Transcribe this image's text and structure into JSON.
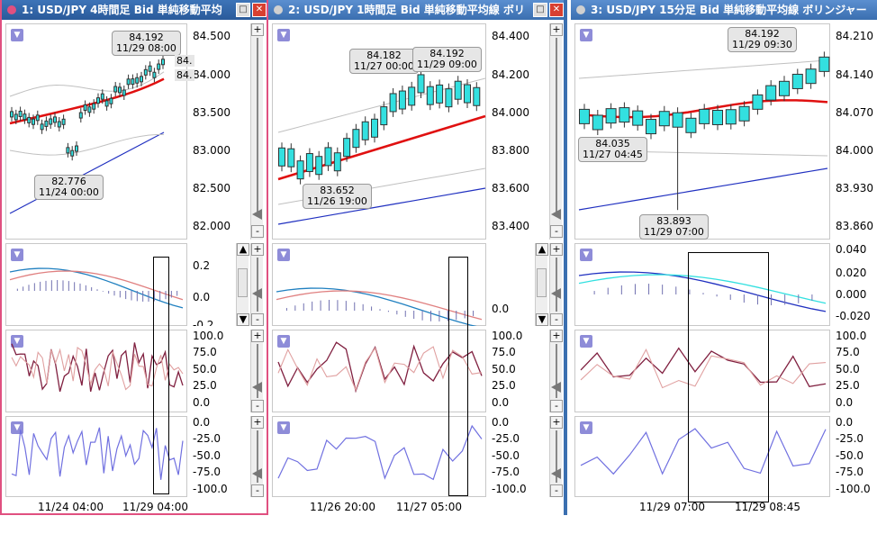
{
  "panes": [
    {
      "title": "1: USD/JPY 4時間足 Bid 単純移動平均",
      "price_axis": [
        "84.500",
        "84.000",
        "83.500",
        "83.000",
        "82.500",
        "82.000"
      ],
      "macd_axis": [
        "0.2",
        "0.0"
      ],
      "macd_axis_clipped": "-0.2",
      "callout_high": {
        "price": "84.192",
        "time": "11/29 08:00"
      },
      "callout_low": {
        "price": "82.776",
        "time": "11/24 00:00"
      },
      "clipped_labels": [
        "84.",
        "84."
      ],
      "x_labels": [
        "11/24 04:00",
        "11/29 04:00"
      ]
    },
    {
      "title": "2: USD/JPY 1時間足 Bid 単純移動平均線 ボリ",
      "price_axis": [
        "84.400",
        "84.200",
        "84.000",
        "83.800",
        "83.600",
        "83.400"
      ],
      "macd_axis": [
        "0.0"
      ],
      "callout_high1": {
        "price": "84.182",
        "time": "11/27 00:00"
      },
      "callout_high2": {
        "price": "84.192",
        "time": "11/29 09:00"
      },
      "callout_low": {
        "price": "83.652",
        "time": "11/26 19:00"
      },
      "x_labels": [
        "11/26 20:00",
        "11/27 05:00"
      ]
    },
    {
      "title": "3: USD/JPY 15分足 Bid 単純移動平均線 ボリンジャー",
      "price_axis": [
        "84.210",
        "84.140",
        "84.070",
        "84.000",
        "83.930",
        "83.860"
      ],
      "macd_axis": [
        "0.040",
        "0.020",
        "0.000",
        "-0.020"
      ],
      "callout_high": {
        "price": "84.192",
        "time": "11/29 09:30"
      },
      "callout_mid": {
        "price": "84.035",
        "time": "11/27 04:45"
      },
      "callout_low": {
        "price": "83.893",
        "time": "11/29 07:00"
      },
      "x_labels": [
        "11/29 07:00",
        "11/29 08:45"
      ]
    }
  ],
  "stoch_axis": [
    "100.0",
    "75.0",
    "50.0",
    "25.0",
    "0.0"
  ],
  "wr_axis": [
    "0.0",
    "-25.0",
    "-50.0",
    "-75.0",
    "-100.0"
  ],
  "buttons": {
    "plus": "+",
    "minus": "-",
    "up": "▲",
    "down": "▼",
    "menu": "▼",
    "max": "□",
    "close": "✕"
  },
  "colors": {
    "bull": "#33e0e0",
    "bear": "#ee44ee",
    "sma": "#e01010",
    "long_ma": "#2030c0",
    "band": "#c0c0c0",
    "macd": "#2080c0",
    "signal": "#e08080",
    "stoch_k": "#802040",
    "stoch_d": "#e0a0a0",
    "wr": "#7070e0",
    "title_pink": "#e05080"
  }
}
